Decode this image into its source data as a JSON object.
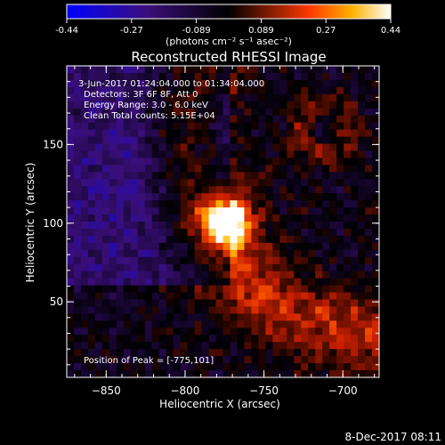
{
  "chart_data": {
    "type": "heatmap",
    "title": "Reconstructed RHESSI Image",
    "xlabel": "Heliocentric X (arcsec)",
    "ylabel": "Heliocentric Y (arcsec)",
    "xlim": [
      -875,
      -677
    ],
    "ylim": [
      2,
      200
    ],
    "xticks": [
      -850,
      -800,
      -750,
      -700
    ],
    "yticks": [
      50,
      100,
      150
    ],
    "colorbar": {
      "min": -0.44,
      "max": 0.44,
      "ticks": [
        "-0.44",
        "-0.27",
        "-0.089",
        "0.089",
        "0.27",
        "0.44"
      ],
      "units": "(photons cm⁻² s⁻¹ asec⁻²)"
    },
    "annotations": [
      "3-Jun-2017 01:24:04.000 to 01:34:04.000",
      "Detectors: 3F 6F 8F, Att 0",
      "Energy Range: 3.0 - 6.0 keV",
      "Clean     Total counts: 5.15E+04"
    ],
    "peak_label": "Position of Peak = [-775,101]",
    "peak": [
      -775,
      101
    ],
    "grid": false
  },
  "footer": {
    "timestamp": "8-Dec-2017 08:11"
  }
}
